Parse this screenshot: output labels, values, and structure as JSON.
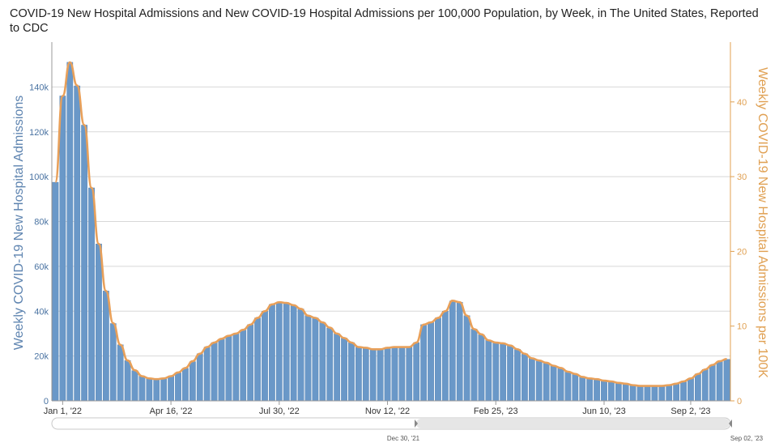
{
  "title": "COVID-19 New Hospital Admissions and New COVID-19 Hospital Admissions per 100,000 Population, by Week, in The United States, Reported to CDC",
  "chart_data": {
    "type": "bar",
    "x_tick_labels": [
      "Jan 1, '22",
      "Apr 16, '22",
      "Jul 30, '22",
      "Nov 12, '22",
      "Feb 25, '23",
      "Jun 10, '23",
      "Sep 2, '23"
    ],
    "y_left_label": "Weekly COVID-19 New Hospital Admissions",
    "y_left_ticks": [
      "0",
      "20k",
      "40k",
      "60k",
      "80k",
      "100k",
      "120k",
      "140k"
    ],
    "y_left_range": [
      0,
      160000
    ],
    "y_right_label": "Weekly COVID-19 New Hospital Admissions per 100K",
    "y_right_ticks": [
      "0",
      "10",
      "20",
      "30",
      "40"
    ],
    "y_right_range": [
      0,
      48
    ],
    "grid": true,
    "navigator_start_label": "Dec 30, '21",
    "navigator_end_label": "Sep 02, '23",
    "series": [
      {
        "name": "Weekly COVID-19 New Hospital Admissions",
        "kind": "bar",
        "color": "#6a98c8",
        "values": [
          97500,
          136000,
          151000,
          140500,
          123000,
          95000,
          70000,
          49000,
          34500,
          25000,
          18000,
          13500,
          11000,
          10000,
          9500,
          10000,
          11000,
          12500,
          14500,
          17500,
          21000,
          24000,
          26000,
          27500,
          29000,
          30000,
          31500,
          34000,
          37000,
          40000,
          43000,
          44000,
          43500,
          42500,
          41000,
          38000,
          37000,
          35000,
          32500,
          30000,
          28000,
          26000,
          24000,
          23500,
          23000,
          23000,
          23500,
          24000,
          24000,
          24000,
          26000,
          34000,
          35000,
          37000,
          40000,
          44500,
          44000,
          38000,
          32000,
          29500,
          27000,
          26000,
          25500,
          24500,
          23000,
          21000,
          19000,
          18000,
          17000,
          15500,
          14500,
          13000,
          12000,
          10500,
          10000,
          9500,
          9000,
          8500,
          8000,
          7500,
          7000,
          6800,
          6500,
          6500,
          6500,
          7000,
          7500,
          8500,
          10000,
          12000,
          14000,
          16000,
          17500,
          18500
        ]
      },
      {
        "name": "Weekly COVID-19 New Hospital Admissions per 100K",
        "kind": "line",
        "color": "#e8a05a",
        "values": [
          29.3,
          40.8,
          45.3,
          42.2,
          36.9,
          28.5,
          21.0,
          14.7,
          10.4,
          7.5,
          5.4,
          4.1,
          3.3,
          3.0,
          2.9,
          3.0,
          3.3,
          3.8,
          4.4,
          5.3,
          6.3,
          7.2,
          7.8,
          8.3,
          8.7,
          9.0,
          9.5,
          10.2,
          11.1,
          12.0,
          12.9,
          13.2,
          13.1,
          12.8,
          12.3,
          11.4,
          11.1,
          10.5,
          9.8,
          9.0,
          8.4,
          7.8,
          7.2,
          7.1,
          6.9,
          6.9,
          7.1,
          7.2,
          7.2,
          7.2,
          7.8,
          10.2,
          10.5,
          11.1,
          12.0,
          13.4,
          13.2,
          11.4,
          9.6,
          8.9,
          8.1,
          7.8,
          7.7,
          7.4,
          6.9,
          6.3,
          5.7,
          5.4,
          5.1,
          4.7,
          4.4,
          3.9,
          3.6,
          3.2,
          3.0,
          2.9,
          2.7,
          2.6,
          2.4,
          2.3,
          2.1,
          2.0,
          2.0,
          2.0,
          2.0,
          2.1,
          2.3,
          2.6,
          3.0,
          3.6,
          4.2,
          4.8,
          5.3,
          5.6
        ]
      }
    ]
  }
}
